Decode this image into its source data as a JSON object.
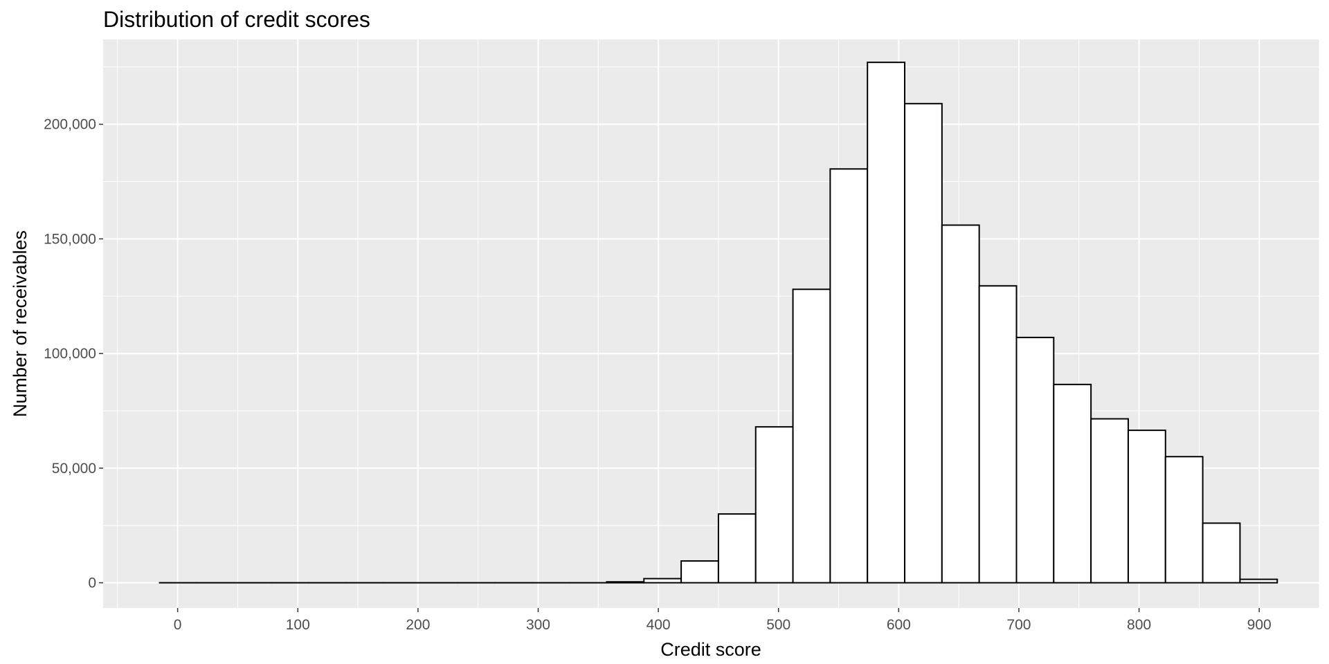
{
  "chart_data": {
    "type": "histogram",
    "title": "Distribution of credit scores",
    "xlabel": "Credit score",
    "ylabel": "Number of receivables",
    "xlim": [
      -62,
      950
    ],
    "ylim": [
      -11000,
      237000
    ],
    "x_ticks": [
      0,
      100,
      200,
      300,
      400,
      500,
      600,
      700,
      800,
      900
    ],
    "x_tick_labels": [
      "0",
      "100",
      "200",
      "300",
      "400",
      "500",
      "600",
      "700",
      "800",
      "900"
    ],
    "y_ticks": [
      0,
      50000,
      100000,
      150000,
      200000
    ],
    "y_tick_labels": [
      "0",
      "50,000",
      "100,000",
      "150,000",
      "200,000"
    ],
    "grid": true,
    "background": "#ebebeb",
    "grid_color": "#ffffff",
    "bar_fill": "#ffffff",
    "bar_stroke": "#000000",
    "bin_width": 31,
    "bins": [
      {
        "x_start": -15,
        "x_end": 16,
        "count": 0
      },
      {
        "x_start": 16,
        "x_end": 47,
        "count": 0
      },
      {
        "x_start": 47,
        "x_end": 78,
        "count": 0
      },
      {
        "x_start": 78,
        "x_end": 109,
        "count": 0
      },
      {
        "x_start": 109,
        "x_end": 140,
        "count": 0
      },
      {
        "x_start": 140,
        "x_end": 171,
        "count": 0
      },
      {
        "x_start": 171,
        "x_end": 202,
        "count": 0
      },
      {
        "x_start": 202,
        "x_end": 233,
        "count": 0
      },
      {
        "x_start": 233,
        "x_end": 264,
        "count": 0
      },
      {
        "x_start": 264,
        "x_end": 295,
        "count": 0
      },
      {
        "x_start": 295,
        "x_end": 326,
        "count": 0
      },
      {
        "x_start": 326,
        "x_end": 357,
        "count": 0
      },
      {
        "x_start": 357,
        "x_end": 388,
        "count": 400
      },
      {
        "x_start": 388,
        "x_end": 419,
        "count": 1800
      },
      {
        "x_start": 419,
        "x_end": 450,
        "count": 9500
      },
      {
        "x_start": 450,
        "x_end": 481,
        "count": 30000
      },
      {
        "x_start": 481,
        "x_end": 512,
        "count": 68000
      },
      {
        "x_start": 512,
        "x_end": 543,
        "count": 128000
      },
      {
        "x_start": 543,
        "x_end": 574,
        "count": 180500
      },
      {
        "x_start": 574,
        "x_end": 605,
        "count": 227000
      },
      {
        "x_start": 605,
        "x_end": 636,
        "count": 209000
      },
      {
        "x_start": 636,
        "x_end": 667,
        "count": 156000
      },
      {
        "x_start": 667,
        "x_end": 698,
        "count": 129500
      },
      {
        "x_start": 698,
        "x_end": 729,
        "count": 107000
      },
      {
        "x_start": 729,
        "x_end": 760,
        "count": 86500
      },
      {
        "x_start": 760,
        "x_end": 791,
        "count": 71500
      },
      {
        "x_start": 791,
        "x_end": 822,
        "count": 66500
      },
      {
        "x_start": 822,
        "x_end": 853,
        "count": 55000
      },
      {
        "x_start": 853,
        "x_end": 884,
        "count": 26000
      },
      {
        "x_start": 884,
        "x_end": 915,
        "count": 1500
      }
    ]
  }
}
